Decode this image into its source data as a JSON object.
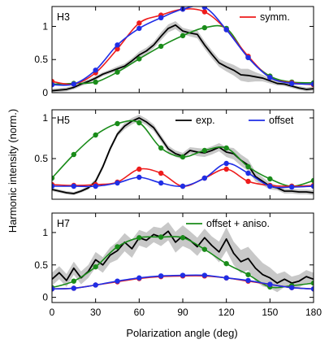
{
  "chart_data": {
    "type": "line",
    "xlabel": "Polarization angle (deg)",
    "ylabel": "Harmonic intensity (norm.)",
    "xlim": [
      0,
      180
    ],
    "x_ticks": [
      0,
      30,
      60,
      90,
      120,
      150,
      180
    ],
    "colors": {
      "exp": "#000000",
      "symm": "#ee1c1c",
      "offset": "#1f2ee6",
      "aniso": "#1a8c1a",
      "band": "#c8c8c8"
    },
    "legend": [
      {
        "key": "symm",
        "label": "symm.",
        "panel": 0,
        "placement": "top-right"
      },
      {
        "key": "exp",
        "label": "exp.",
        "panel": 1,
        "placement": "top-center"
      },
      {
        "key": "offset",
        "label": "offset",
        "panel": 1,
        "placement": "top-right"
      },
      {
        "key": "aniso",
        "label": "offset + aniso.",
        "panel": 2,
        "placement": "top-right"
      }
    ],
    "panels": [
      {
        "label": "H3",
        "ylim": [
          0,
          1.3
        ],
        "y_ticks": [
          0,
          0.5,
          1
        ],
        "y_tick_labels": [
          "0",
          "0.5",
          "1"
        ],
        "series": [
          {
            "key": "exp",
            "x": [
              0,
              5,
              10,
              15,
              20,
              25,
              30,
              35,
              40,
              45,
              50,
              55,
              60,
              65,
              70,
              75,
              80,
              85,
              90,
              95,
              100,
              105,
              110,
              115,
              120,
              125,
              130,
              135,
              140,
              145,
              150,
              155,
              160,
              165,
              170,
              175,
              180
            ],
            "values": [
              0.03,
              0.04,
              0.05,
              0.08,
              0.13,
              0.17,
              0.22,
              0.28,
              0.32,
              0.36,
              0.4,
              0.48,
              0.57,
              0.63,
              0.72,
              0.85,
              0.97,
              1.02,
              0.93,
              0.9,
              0.88,
              0.72,
              0.58,
              0.45,
              0.39,
              0.34,
              0.27,
              0.26,
              0.24,
              0.22,
              0.18,
              0.14,
              0.13,
              0.1,
              0.07,
              0.05,
              0.06
            ],
            "band_halfwidth": [
              0.03,
              0.03,
              0.03,
              0.03,
              0.03,
              0.03,
              0.03,
              0.03,
              0.03,
              0.04,
              0.04,
              0.04,
              0.05,
              0.05,
              0.05,
              0.06,
              0.06,
              0.06,
              0.05,
              0.05,
              0.06,
              0.06,
              0.06,
              0.06,
              0.07,
              0.08,
              0.09,
              0.1,
              0.07,
              0.05,
              0.04,
              0.03,
              0.03,
              0.03,
              0.03,
              0.03,
              0.03
            ]
          },
          {
            "key": "symm",
            "x": [
              0,
              15,
              30,
              45,
              60,
              75,
              90,
              105,
              120,
              135,
              150,
              165,
              180
            ],
            "values": [
              0.17,
              0.13,
              0.3,
              0.66,
              1.05,
              1.17,
              1.26,
              1.22,
              0.95,
              0.55,
              0.23,
              0.15,
              0.12
            ]
          },
          {
            "key": "offset",
            "x": [
              0,
              15,
              30,
              45,
              60,
              75,
              90,
              105,
              120,
              135,
              150,
              165,
              180
            ],
            "values": [
              0.12,
              0.13,
              0.34,
              0.72,
              0.97,
              1.13,
              1.26,
              1.29,
              0.95,
              0.53,
              0.23,
              0.14,
              0.13
            ]
          },
          {
            "key": "aniso",
            "x": [
              0,
              15,
              30,
              45,
              60,
              75,
              90,
              105,
              120,
              135,
              150,
              165,
              180
            ],
            "values": [
              0.13,
              0.14,
              0.16,
              0.31,
              0.51,
              0.7,
              0.86,
              0.98,
              0.97,
              0.53,
              0.25,
              0.16,
              0.15
            ]
          }
        ]
      },
      {
        "label": "H5",
        "ylim": [
          0,
          1.1
        ],
        "y_ticks": [
          0.5,
          1
        ],
        "y_tick_labels": [
          "0.5",
          "1"
        ],
        "series": [
          {
            "key": "exp",
            "x": [
              0,
              5,
              10,
              15,
              20,
              25,
              30,
              35,
              40,
              45,
              50,
              55,
              60,
              65,
              70,
              75,
              80,
              85,
              90,
              95,
              100,
              105,
              110,
              115,
              120,
              125,
              130,
              135,
              140,
              145,
              150,
              155,
              160,
              165,
              170,
              175,
              180
            ],
            "values": [
              0.12,
              0.1,
              0.08,
              0.07,
              0.1,
              0.14,
              0.22,
              0.4,
              0.62,
              0.8,
              0.9,
              0.96,
              1.0,
              0.95,
              0.88,
              0.75,
              0.62,
              0.56,
              0.53,
              0.6,
              0.58,
              0.57,
              0.6,
              0.64,
              0.58,
              0.56,
              0.48,
              0.42,
              0.28,
              0.22,
              0.16,
              0.14,
              0.1,
              0.1,
              0.09,
              0.09,
              0.08
            ],
            "band_halfwidth": [
              0.02,
              0.02,
              0.02,
              0.02,
              0.02,
              0.02,
              0.03,
              0.03,
              0.03,
              0.03,
              0.04,
              0.04,
              0.04,
              0.04,
              0.04,
              0.04,
              0.04,
              0.04,
              0.04,
              0.04,
              0.05,
              0.05,
              0.05,
              0.05,
              0.06,
              0.07,
              0.07,
              0.07,
              0.06,
              0.05,
              0.04,
              0.03,
              0.03,
              0.03,
              0.03,
              0.03,
              0.03
            ]
          },
          {
            "key": "symm",
            "x": [
              0,
              15,
              30,
              45,
              60,
              75,
              90,
              105,
              120,
              135,
              150,
              165,
              180
            ],
            "values": [
              0.18,
              0.17,
              0.18,
              0.21,
              0.37,
              0.32,
              0.16,
              0.26,
              0.37,
              0.22,
              0.17,
              0.16,
              0.17
            ]
          },
          {
            "key": "offset",
            "x": [
              0,
              15,
              30,
              45,
              60,
              75,
              90,
              105,
              120,
              135,
              150,
              165,
              180
            ],
            "values": [
              0.16,
              0.16,
              0.16,
              0.2,
              0.27,
              0.2,
              0.16,
              0.26,
              0.44,
              0.32,
              0.16,
              0.15,
              0.16
            ]
          },
          {
            "key": "aniso",
            "x": [
              0,
              15,
              30,
              45,
              60,
              75,
              90,
              105,
              120,
              135,
              150,
              165,
              180
            ],
            "values": [
              0.26,
              0.55,
              0.79,
              0.93,
              0.94,
              0.63,
              0.52,
              0.6,
              0.63,
              0.4,
              0.25,
              0.16,
              0.23
            ]
          }
        ]
      },
      {
        "label": "H7",
        "ylim": [
          -0.08,
          1.3
        ],
        "y_ticks": [
          0,
          0.5,
          1
        ],
        "y_tick_labels": [
          "0",
          "0.5",
          "1"
        ],
        "series": [
          {
            "key": "exp",
            "x": [
              0,
              5,
              10,
              15,
              20,
              25,
              30,
              35,
              40,
              45,
              50,
              55,
              60,
              65,
              70,
              75,
              80,
              85,
              90,
              95,
              100,
              105,
              110,
              115,
              120,
              125,
              130,
              135,
              140,
              145,
              150,
              155,
              160,
              165,
              170,
              175,
              180
            ],
            "values": [
              0.28,
              0.38,
              0.26,
              0.45,
              0.3,
              0.4,
              0.58,
              0.5,
              0.65,
              0.72,
              0.85,
              0.75,
              0.92,
              0.88,
              0.97,
              0.93,
              1.02,
              0.85,
              0.95,
              0.88,
              0.78,
              0.92,
              0.8,
              0.7,
              0.9,
              0.68,
              0.55,
              0.6,
              0.45,
              0.35,
              0.3,
              0.22,
              0.28,
              0.22,
              0.25,
              0.32,
              0.28
            ],
            "band_halfwidth": [
              0.1,
              0.1,
              0.1,
              0.1,
              0.1,
              0.1,
              0.12,
              0.12,
              0.12,
              0.14,
              0.14,
              0.14,
              0.12,
              0.12,
              0.12,
              0.14,
              0.14,
              0.16,
              0.16,
              0.14,
              0.14,
              0.14,
              0.14,
              0.16,
              0.18,
              0.18,
              0.18,
              0.18,
              0.2,
              0.18,
              0.16,
              0.14,
              0.12,
              0.1,
              0.1,
              0.1,
              0.1
            ]
          },
          {
            "key": "symm",
            "x": [
              0,
              15,
              30,
              45,
              60,
              75,
              90,
              105,
              120,
              135,
              150,
              165,
              180
            ],
            "values": [
              0.13,
              0.14,
              0.19,
              0.24,
              0.29,
              0.32,
              0.33,
              0.33,
              0.3,
              0.25,
              0.2,
              0.15,
              0.13
            ]
          },
          {
            "key": "offset",
            "x": [
              0,
              15,
              30,
              45,
              60,
              75,
              90,
              105,
              120,
              135,
              150,
              165,
              180
            ],
            "values": [
              0.13,
              0.14,
              0.19,
              0.25,
              0.3,
              0.33,
              0.34,
              0.34,
              0.3,
              0.26,
              0.2,
              0.15,
              0.13
            ]
          },
          {
            "key": "aniso",
            "x": [
              0,
              15,
              30,
              45,
              60,
              75,
              90,
              105,
              120,
              135,
              150,
              165,
              180
            ],
            "values": [
              0.15,
              0.25,
              0.47,
              0.78,
              0.92,
              0.93,
              0.92,
              0.74,
              0.52,
              0.35,
              0.16,
              0.18,
              0.22
            ]
          }
        ]
      }
    ]
  }
}
